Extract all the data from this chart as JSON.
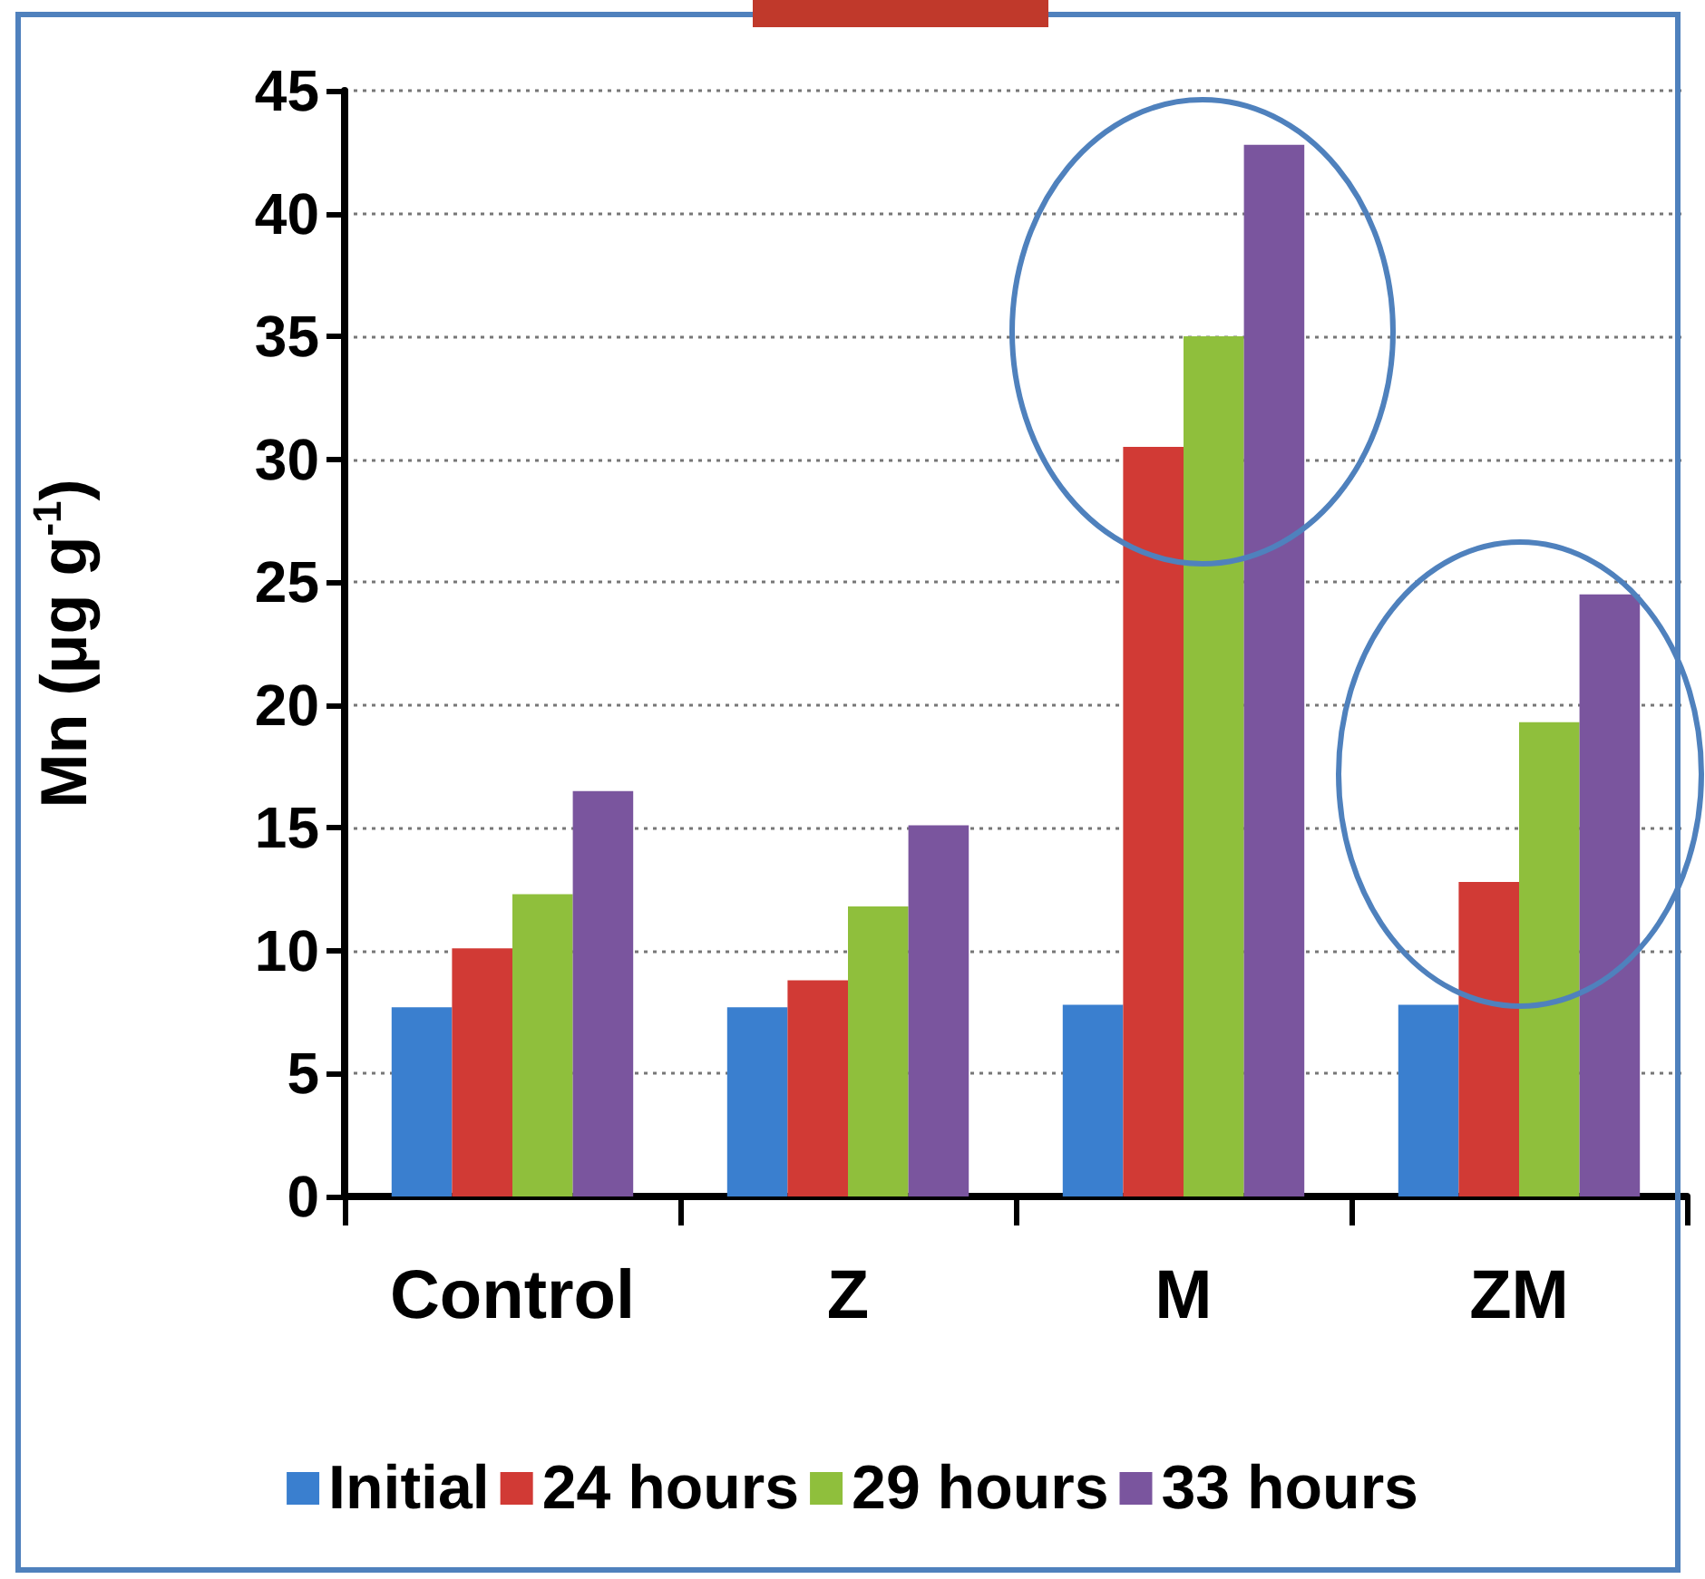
{
  "chart_data": {
    "type": "bar",
    "ylabel": "Mn (μg g$^{-1}$)",
    "categories": [
      "Control",
      "Z",
      "M",
      "ZM"
    ],
    "series": [
      {
        "name": "Initial",
        "color": "#3a7fcf",
        "values": [
          7.7,
          7.7,
          7.8,
          7.8
        ]
      },
      {
        "name": "24 hours",
        "color": "#d13a35",
        "values": [
          10.1,
          8.8,
          30.5,
          12.8
        ]
      },
      {
        "name": "29 hours",
        "color": "#8fbf3c",
        "values": [
          12.3,
          11.8,
          35.0,
          19.3
        ]
      },
      {
        "name": "33 hours",
        "color": "#7a559e",
        "values": [
          16.5,
          15.1,
          42.8,
          24.5
        ]
      }
    ],
    "ylim": [
      0,
      45
    ],
    "yticks": [
      0,
      5,
      10,
      15,
      20,
      25,
      30,
      35,
      40,
      45
    ],
    "grid": "y",
    "legend": "bottom"
  }
}
